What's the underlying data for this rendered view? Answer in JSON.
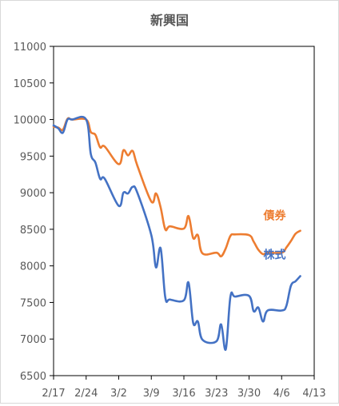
{
  "chart_data": {
    "type": "line",
    "title": "新興国",
    "xlabel": "",
    "ylabel": "",
    "ylim": [
      6500,
      11000
    ],
    "yticks": [
      6500,
      7000,
      7500,
      8000,
      8500,
      9000,
      9500,
      10000,
      10500,
      11000
    ],
    "xlim": [
      "2/17",
      "4/13"
    ],
    "xticks": [
      "2/17",
      "2/24",
      "3/2",
      "3/9",
      "3/16",
      "3/23",
      "3/30",
      "4/6",
      "4/13"
    ],
    "grid": false,
    "legend": "inline labels",
    "series": [
      {
        "name": "債券",
        "color": "#ED7D31",
        "points": [
          [
            "2/17",
            9900
          ],
          [
            "2/18",
            9890
          ],
          [
            "2/19",
            9860
          ],
          [
            "2/20",
            10010
          ],
          [
            "2/21",
            10000
          ],
          [
            "2/24",
            10000
          ],
          [
            "2/25",
            9830
          ],
          [
            "2/26",
            9790
          ],
          [
            "2/27",
            9620
          ],
          [
            "2/28",
            9630
          ],
          [
            "3/2",
            9390
          ],
          [
            "3/3",
            9580
          ],
          [
            "3/4",
            9510
          ],
          [
            "3/5",
            9570
          ],
          [
            "3/6",
            9370
          ],
          [
            "3/9",
            8880
          ],
          [
            "3/10",
            8990
          ],
          [
            "3/11",
            8800
          ],
          [
            "3/12",
            8500
          ],
          [
            "3/13",
            8540
          ],
          [
            "3/16",
            8510
          ],
          [
            "3/17",
            8680
          ],
          [
            "3/18",
            8380
          ],
          [
            "3/19",
            8420
          ],
          [
            "3/20",
            8170
          ],
          [
            "3/23",
            8180
          ],
          [
            "3/24",
            8130
          ],
          [
            "3/25",
            8240
          ],
          [
            "3/26",
            8410
          ],
          [
            "3/27",
            8430
          ],
          [
            "3/30",
            8420
          ],
          [
            "3/31",
            8330
          ],
          [
            "4/1",
            8220
          ],
          [
            "4/2",
            8160
          ],
          [
            "4/3",
            8180
          ],
          [
            "4/6",
            8180
          ],
          [
            "4/7",
            8250
          ],
          [
            "4/8",
            8340
          ],
          [
            "4/9",
            8440
          ],
          [
            "4/10",
            8480
          ]
        ]
      },
      {
        "name": "株式",
        "color": "#4472C4",
        "points": [
          [
            "2/17",
            9920
          ],
          [
            "2/18",
            9880
          ],
          [
            "2/19",
            9820
          ],
          [
            "2/20",
            10000
          ],
          [
            "2/21",
            10000
          ],
          [
            "2/24",
            10000
          ],
          [
            "2/25",
            9530
          ],
          [
            "2/26",
            9410
          ],
          [
            "2/27",
            9190
          ],
          [
            "2/28",
            9190
          ],
          [
            "3/2",
            8820
          ],
          [
            "3/3",
            9000
          ],
          [
            "3/4",
            8990
          ],
          [
            "3/5",
            9080
          ],
          [
            "3/6",
            9000
          ],
          [
            "3/9",
            8420
          ],
          [
            "3/10",
            7980
          ],
          [
            "3/11",
            8240
          ],
          [
            "3/12",
            7570
          ],
          [
            "3/13",
            7540
          ],
          [
            "3/16",
            7530
          ],
          [
            "3/17",
            7770
          ],
          [
            "3/18",
            7220
          ],
          [
            "3/19",
            7240
          ],
          [
            "3/20",
            6990
          ],
          [
            "3/23",
            6970
          ],
          [
            "3/24",
            7200
          ],
          [
            "3/25",
            6860
          ],
          [
            "3/26",
            7580
          ],
          [
            "3/27",
            7580
          ],
          [
            "3/30",
            7590
          ],
          [
            "3/31",
            7380
          ],
          [
            "4/1",
            7430
          ],
          [
            "4/2",
            7240
          ],
          [
            "4/3",
            7390
          ],
          [
            "4/6",
            7390
          ],
          [
            "4/7",
            7450
          ],
          [
            "4/8",
            7730
          ],
          [
            "4/9",
            7790
          ],
          [
            "4/10",
            7860
          ]
        ]
      }
    ]
  }
}
